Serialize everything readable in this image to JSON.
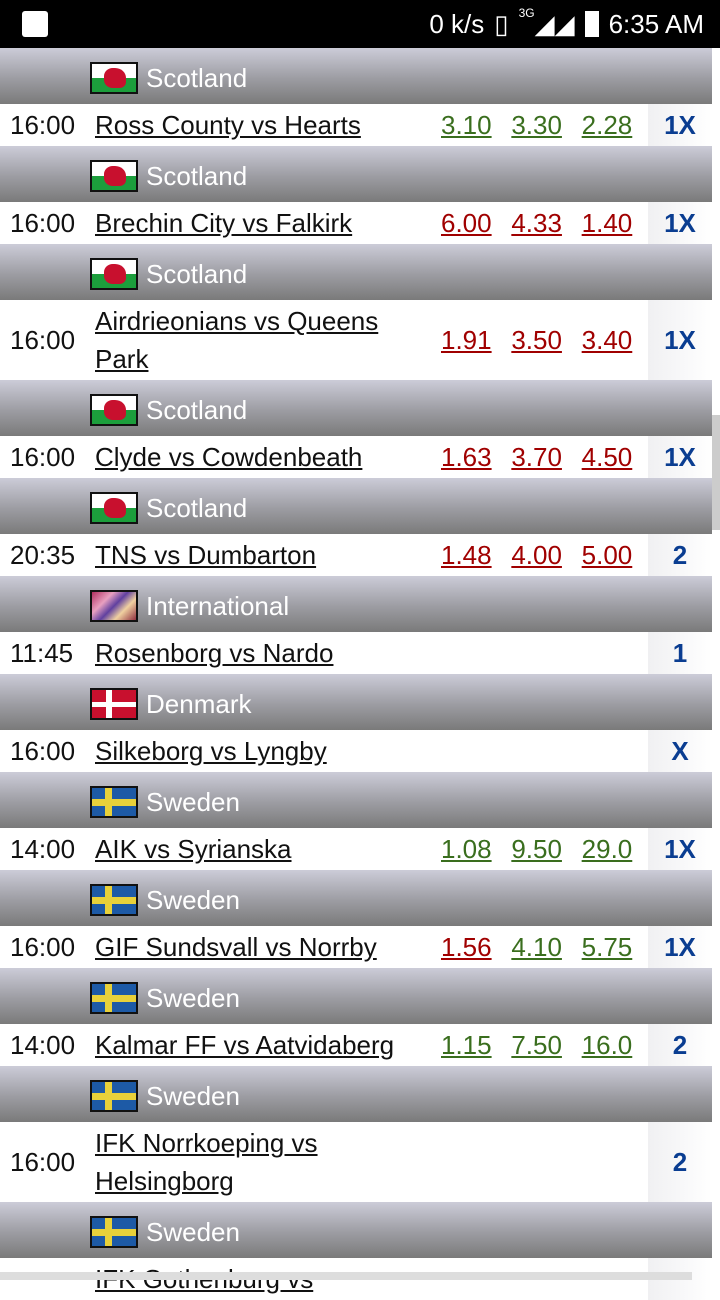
{
  "status": {
    "speed": "0 k/s",
    "network": "3G",
    "time": "6:35 AM",
    "icons": [
      "image-icon",
      "vibrate-icon",
      "signal-icon",
      "signal-icon",
      "battery-icon"
    ]
  },
  "colors": {
    "odds_up": "#3a6e1e",
    "odds_down": "#a00000",
    "tip": "#0a3d91"
  },
  "groups": [
    {
      "country": "Scotland",
      "flag": "wales",
      "time": "16:00",
      "match": "Ross County vs Hearts",
      "odds": [
        "3.10",
        "3.30",
        "2.28"
      ],
      "odds_color": "g",
      "tip": "1X"
    },
    {
      "country": "Scotland",
      "flag": "wales",
      "time": "16:00",
      "match": "Brechin City vs Falkirk",
      "odds": [
        "6.00",
        "4.33",
        "1.40"
      ],
      "odds_color": "r",
      "tip": "1X"
    },
    {
      "country": "Scotland",
      "flag": "wales",
      "time": "16:00",
      "match": "Airdrieonians vs Queens Park",
      "odds": [
        "1.91",
        "3.50",
        "3.40"
      ],
      "odds_color": "r",
      "tip": "1X",
      "dbl": true
    },
    {
      "country": "Scotland",
      "flag": "wales",
      "time": "16:00",
      "match": "Clyde vs Cowdenbeath",
      "odds": [
        "1.63",
        "3.70",
        "4.50"
      ],
      "odds_color": "r",
      "tip": "1X"
    },
    {
      "country": "Scotland",
      "flag": "wales",
      "time": "20:35",
      "match": "TNS vs Dumbarton",
      "odds": [
        "1.48",
        "4.00",
        "5.00"
      ],
      "odds_color": "r",
      "tip": "2"
    },
    {
      "country": "International",
      "flag": "intl",
      "time": "11:45",
      "match": "Rosenborg vs Nardo",
      "odds": [],
      "tip": "1"
    },
    {
      "country": "Denmark",
      "flag": "denmark",
      "time": "16:00",
      "match": "Silkeborg vs Lyngby",
      "odds": [],
      "tip": "X"
    },
    {
      "country": "Sweden",
      "flag": "sweden",
      "time": "14:00",
      "match": "AIK vs Syrianska",
      "odds": [
        "1.08",
        "9.50",
        "29.0"
      ],
      "odds_color": "g",
      "tip": "1X"
    },
    {
      "country": "Sweden",
      "flag": "sweden",
      "time": "16:00",
      "match": "GIF Sundsvall vs Norrby",
      "odds": [
        "1.56",
        "4.10",
        "5.75"
      ],
      "odds_color": "rgg",
      "tip": "1X"
    },
    {
      "country": "Sweden",
      "flag": "sweden",
      "time": "14:00",
      "match": "Kalmar FF vs Aatvidaberg",
      "odds": [
        "1.15",
        "7.50",
        "16.0"
      ],
      "odds_color": "g",
      "tip": "2"
    },
    {
      "country": "Sweden",
      "flag": "sweden",
      "time": "16:00",
      "match": "IFK Norrkoeping vs Helsingborg",
      "odds": [],
      "tip": "2",
      "dbl": true
    },
    {
      "country": "Sweden",
      "flag": "sweden",
      "time": "",
      "match": "IFK Gothenburg vs",
      "odds": [],
      "tip": ""
    }
  ]
}
